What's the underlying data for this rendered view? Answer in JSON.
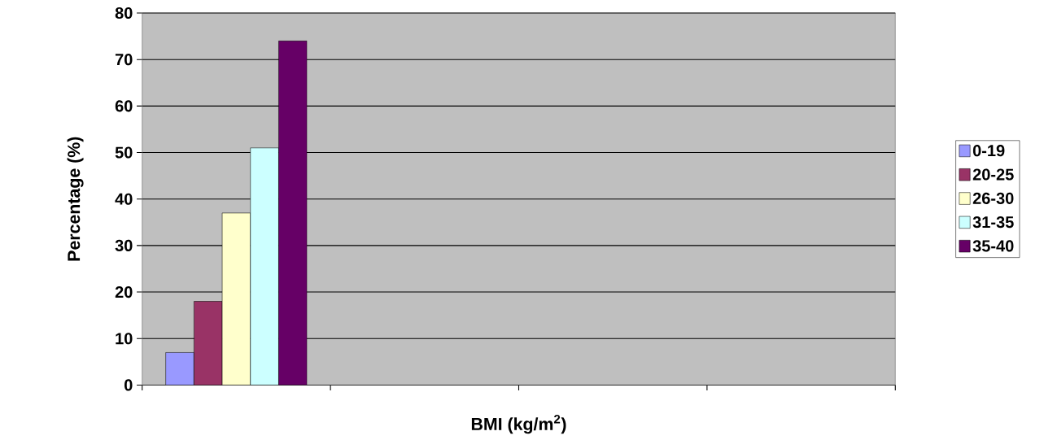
{
  "chart_data": {
    "type": "bar",
    "xlabel": "BMI (kg/m$^{2}$)",
    "ylabel": "Percentage  (%)",
    "categories": [
      null,
      null,
      null,
      null
    ],
    "series": [
      {
        "name": "0-19",
        "color": "#9999ff",
        "values": [
          7,
          null,
          null,
          null
        ]
      },
      {
        "name": "20-25",
        "color": "#993366",
        "values": [
          18,
          null,
          null,
          null
        ]
      },
      {
        "name": "26-30",
        "color": "#ffffcc",
        "values": [
          37,
          null,
          null,
          null
        ]
      },
      {
        "name": "31-35",
        "color": "#ccffff",
        "values": [
          51,
          null,
          null,
          null
        ]
      },
      {
        "name": "35-40",
        "color": "#660066",
        "values": [
          74,
          null,
          null,
          null
        ]
      }
    ],
    "ylim": [
      0,
      80
    ],
    "yticks": [
      0,
      10,
      20,
      30,
      40,
      50,
      60,
      70,
      80
    ],
    "grid": "y",
    "legend": "right"
  }
}
